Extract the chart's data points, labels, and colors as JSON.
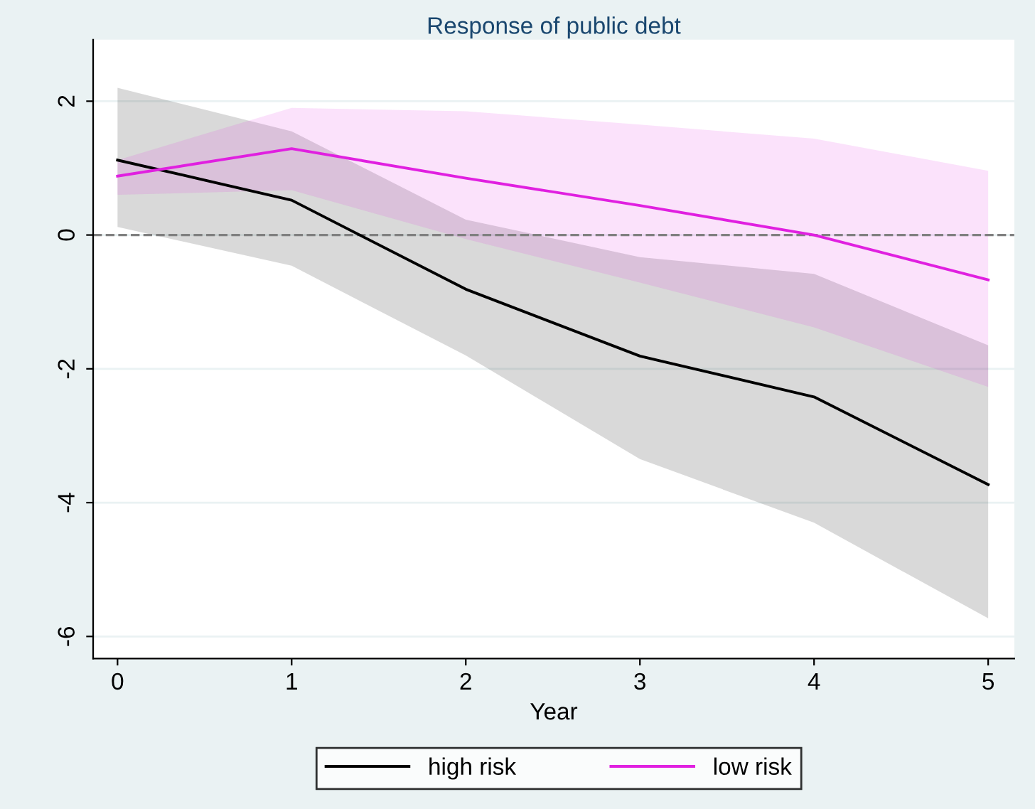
{
  "chart_data": {
    "type": "line",
    "title": "Response of public debt",
    "xlabel": "Year",
    "x": [
      0,
      1,
      2,
      3,
      4,
      5
    ],
    "series": [
      {
        "name": "high risk",
        "color": "#000000",
        "values": [
          1.12,
          0.52,
          -0.81,
          -1.81,
          -2.42,
          -3.73
        ],
        "upper": [
          2.2,
          1.55,
          0.23,
          -0.33,
          -0.58,
          -1.65
        ],
        "lower": [
          0.12,
          -0.46,
          -1.8,
          -3.35,
          -4.3,
          -5.73
        ]
      },
      {
        "name": "low risk",
        "color": "#e020e0",
        "values": [
          0.88,
          1.29,
          0.85,
          0.44,
          0.0,
          -0.67
        ],
        "upper": [
          1.12,
          1.9,
          1.85,
          1.65,
          1.44,
          0.96
        ],
        "lower": [
          0.6,
          0.67,
          -0.06,
          -0.71,
          -1.38,
          -2.27
        ]
      }
    ],
    "xlim": [
      -0.14,
      5.15
    ],
    "ylim": [
      -6.33,
      2.92
    ],
    "xticks": [
      0,
      1,
      2,
      3,
      4,
      5
    ],
    "yticks": [
      -6,
      -4,
      -2,
      0,
      2
    ],
    "ref_lines": [
      {
        "axis": "y",
        "value": 0,
        "color": "#808080",
        "line_style": "dashed"
      }
    ],
    "grid": "y",
    "legend": "bottom",
    "marker": "none",
    "line_style": "solid"
  }
}
